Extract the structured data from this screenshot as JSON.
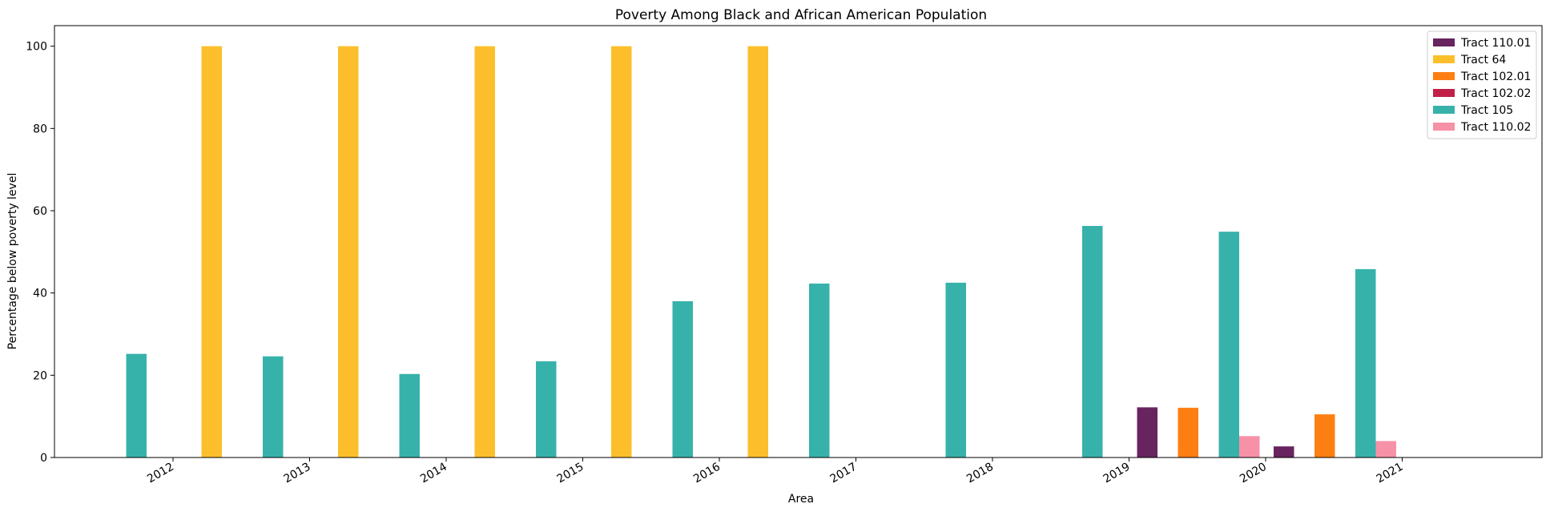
{
  "chart_data": {
    "type": "bar",
    "title": "Poverty Among Black and African American Population",
    "xlabel": "Area",
    "ylabel": "Percentage below poverty level",
    "categories": [
      "2012",
      "2013",
      "2014",
      "2015",
      "2016",
      "2017",
      "2018",
      "2019",
      "2020",
      "2021"
    ],
    "ylim": [
      0,
      105
    ],
    "yticks": [
      0,
      20,
      40,
      60,
      80,
      100
    ],
    "grid": false,
    "legend_position": "top-right",
    "series": [
      {
        "name": "Tract 110.01",
        "color": "#67245f",
        "values": [
          null,
          null,
          null,
          null,
          null,
          null,
          null,
          null,
          12.2,
          2.7
        ]
      },
      {
        "name": "Tract 64",
        "color": "#fcbf2b",
        "values": [
          null,
          100,
          100,
          100,
          100,
          100,
          null,
          null,
          null,
          null
        ]
      },
      {
        "name": "Tract 102.01",
        "color": "#fd7f12",
        "values": [
          null,
          null,
          null,
          null,
          null,
          null,
          null,
          null,
          12.1,
          10.5
        ]
      },
      {
        "name": "Tract 102.02",
        "color": "#c11f47",
        "values": [
          null,
          null,
          null,
          null,
          null,
          null,
          null,
          null,
          null,
          null
        ]
      },
      {
        "name": "Tract 105",
        "color": "#37b2aa",
        "values": [
          25.2,
          24.6,
          20.3,
          23.4,
          38.0,
          42.3,
          42.5,
          56.3,
          54.9,
          45.8
        ]
      },
      {
        "name": "Tract 110.02",
        "color": "#f691a8",
        "values": [
          null,
          null,
          null,
          null,
          null,
          null,
          null,
          null,
          5.2,
          4.0
        ]
      }
    ]
  }
}
